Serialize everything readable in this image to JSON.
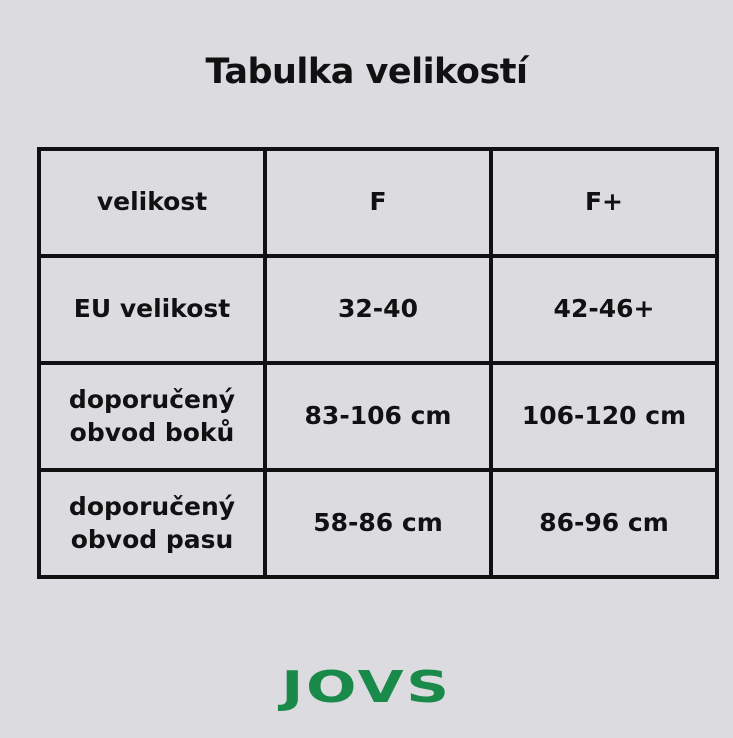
{
  "title": "Tabulka velikostí",
  "table": {
    "rows": [
      [
        "velikost",
        "F",
        "F+"
      ],
      [
        "EU velikost",
        "32-40",
        "42-46+"
      ],
      [
        "doporučený obvod boků",
        "83-106 cm",
        "106-120 cm"
      ],
      [
        "doporučený obvod pasu",
        "58-86 cm",
        "86-96 cm"
      ]
    ]
  },
  "logo": {
    "text": "JOVS",
    "color": "#1a8a4a"
  }
}
